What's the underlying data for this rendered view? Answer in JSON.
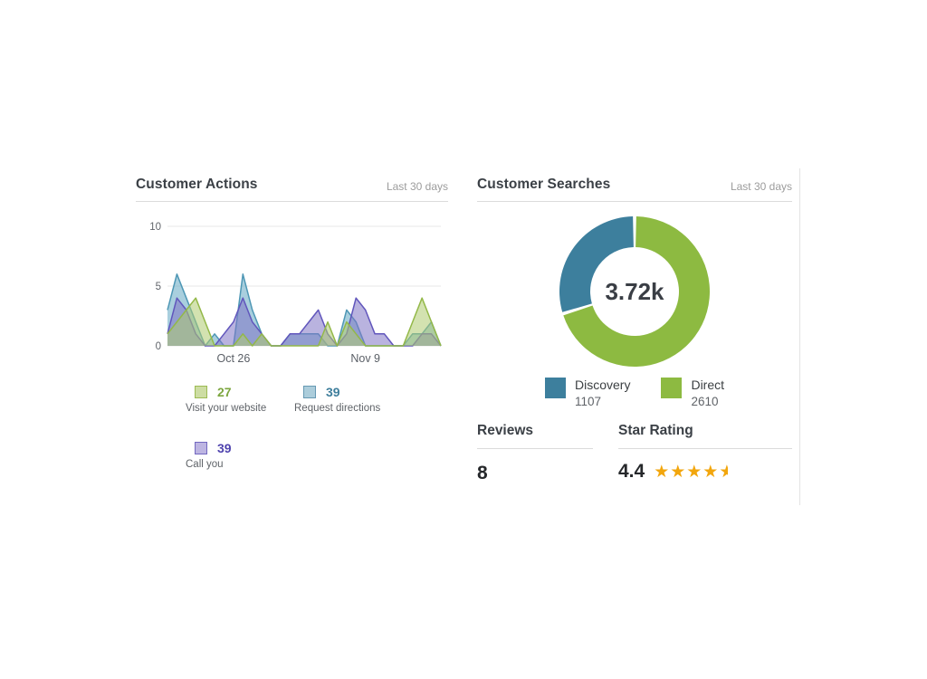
{
  "left_panel": {
    "title": "Customer Actions",
    "period": "Last 30 days",
    "legend": [
      {
        "label": "Visit your website",
        "count": "27",
        "fill": "#cddda3",
        "border": "#9cbb53",
        "number_color": "#7ca63f"
      },
      {
        "label": "Request directions",
        "count": "39",
        "fill": "#accddb",
        "border": "#6699b3",
        "number_color": "#3e7e9c"
      },
      {
        "label": "Call you",
        "count": "39",
        "fill": "#bdb5e2",
        "border": "#7368c0",
        "number_color": "#4f43ae"
      }
    ]
  },
  "right_panel": {
    "title": "Customer Searches",
    "period": "Last 30 days",
    "donut_center": "3.72k",
    "legend": [
      {
        "label": "Discovery",
        "count": "1107",
        "color": "#3d7f9d"
      },
      {
        "label": "Direct",
        "count": "2610",
        "color": "#8dba41"
      }
    ],
    "reviews": {
      "title": "Reviews",
      "value": "8"
    },
    "star_rating": {
      "title": "Star Rating",
      "value": "4.4",
      "star_color": "#f2a60d"
    }
  },
  "chart_data": [
    {
      "type": "area",
      "title": "Customer Actions",
      "xlabel": "",
      "ylabel": "",
      "ylim": [
        0,
        10.5
      ],
      "y_ticks": [
        0,
        5,
        10
      ],
      "grid": true,
      "x_ticks": [
        {
          "index": 7,
          "label": "Oct 26"
        },
        {
          "index": 21,
          "label": "Nov 9"
        }
      ],
      "note": "series listed in draw order (back to front); values are per-day estimates over the last 30 days",
      "series": [
        {
          "name": "Request directions",
          "total": 39,
          "fill": "#62a8c3",
          "stroke": "#4e97b5",
          "values": [
            3,
            6,
            4,
            2,
            0,
            1,
            0,
            0,
            6,
            3,
            1,
            0,
            0,
            1,
            1,
            1,
            1,
            0,
            0,
            3,
            2,
            0,
            0,
            0,
            0,
            0,
            1,
            1,
            2,
            0
          ]
        },
        {
          "name": "Call you",
          "total": 39,
          "fill": "#7f74c4",
          "stroke": "#6156bc",
          "values": [
            1,
            4,
            3,
            1,
            0,
            0,
            1,
            2,
            4,
            2,
            1,
            0,
            0,
            1,
            1,
            2,
            3,
            1,
            0,
            1,
            4,
            3,
            1,
            1,
            0,
            0,
            0,
            1,
            1,
            0
          ]
        },
        {
          "name": "Visit your website",
          "total": 27,
          "fill": "#afcb70",
          "stroke": "#93b848",
          "values": [
            1,
            2,
            3,
            4,
            2,
            0,
            0,
            0,
            1,
            0,
            1,
            0,
            0,
            0,
            0,
            0,
            0,
            2,
            0,
            2,
            1,
            0,
            0,
            0,
            0,
            0,
            2,
            4,
            2,
            0
          ]
        }
      ]
    },
    {
      "type": "donut",
      "title": "Customer Searches",
      "center_label": "3.72k",
      "total": 3717,
      "slices": [
        {
          "label": "Discovery",
          "value": 1107,
          "color": "#3d7f9d"
        },
        {
          "label": "Direct",
          "value": 2610,
          "color": "#8dba41"
        }
      ],
      "layout": "Direct starts at 12 o'clock clockwise, Discovery fills remainder; thin white gaps at boundaries"
    }
  ]
}
